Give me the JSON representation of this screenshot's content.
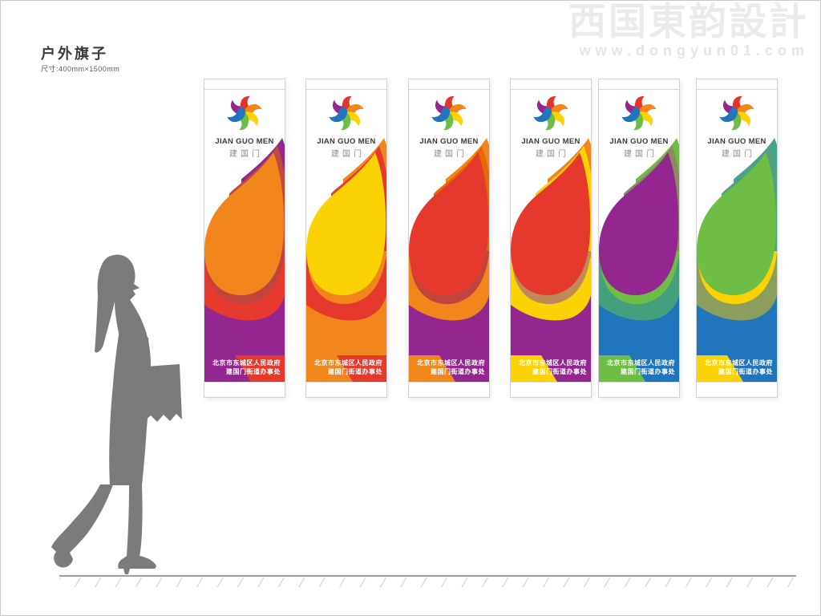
{
  "header": {
    "title": "户外旗子",
    "subtitle": "尺寸:400mm×1500mm"
  },
  "watermark": {
    "brand": "西国東韵設計",
    "url": "www.dongyun01.com"
  },
  "flag": {
    "logo_en": "JIAN GUO MEN",
    "logo_cn": "建国门",
    "footer_line1": "北京市东城区人民政府",
    "footer_line2": "建国门街道办事处",
    "petal_colors": [
      "#94278F",
      "#E6332A",
      "#F1861C",
      "#FBD304",
      "#6EBE45",
      "#2175BC"
    ]
  },
  "banners": [
    {
      "variant": "orange-purple",
      "colors": {
        "blob": "#F1861C",
        "corner": "#94278F",
        "cornerStripe": "#BE4B40",
        "sweepStripe": "#C0443C",
        "sweepMain": "#E6392E",
        "sweepDeep": "#94278F",
        "bandLeft": "#94278F",
        "bandRight": "#E6392E"
      }
    },
    {
      "variant": "yellow-red",
      "colors": {
        "blob": "#FBD304",
        "corner": "#F1861C",
        "cornerStripe": "#E6392E",
        "sweepStripe": "#F1861C",
        "sweepMain": "#E6392E",
        "sweepDeep": "#F1861C",
        "bandLeft": "#F1861C",
        "bandRight": "#E6392E"
      }
    },
    {
      "variant": "red-orange-purple",
      "colors": {
        "blob": "#E6392E",
        "corner": "#F1861C",
        "cornerStripe": "#E66A00",
        "sweepStripe": "#C0443C",
        "sweepMain": "#F1861C",
        "sweepDeep": "#94278F",
        "bandLeft": "#F1861C",
        "bandRight": "#94278F"
      }
    },
    {
      "variant": "red-yellow-purple",
      "colors": {
        "blob": "#E6392E",
        "corner": "#F1861C",
        "cornerStripe": "#FBD304",
        "sweepStripe": "#BE8A5A",
        "sweepMain": "#FBD304",
        "sweepDeep": "#94278F",
        "bandLeft": "#FBD304",
        "bandRight": "#94278F"
      }
    },
    {
      "variant": "purple-green-blue",
      "colors": {
        "blob": "#94278F",
        "corner": "#6EBE45",
        "cornerStripe": "#8C8A62",
        "sweepStripe": "#6EBE45",
        "sweepMain": "#44A07C",
        "sweepDeep": "#2175BC",
        "bandLeft": "#6EBE45",
        "bandRight": "#2175BC"
      }
    },
    {
      "variant": "green-yellow-blue",
      "colors": {
        "blob": "#6EBE45",
        "corner": "#44A58C",
        "cornerStripe": "#52A081",
        "sweepStripe": "#FBD304",
        "sweepMain": "#8C9E5E",
        "sweepDeep": "#2175BC",
        "bandLeft": "#FBD304",
        "bandRight": "#2175BC"
      }
    }
  ]
}
